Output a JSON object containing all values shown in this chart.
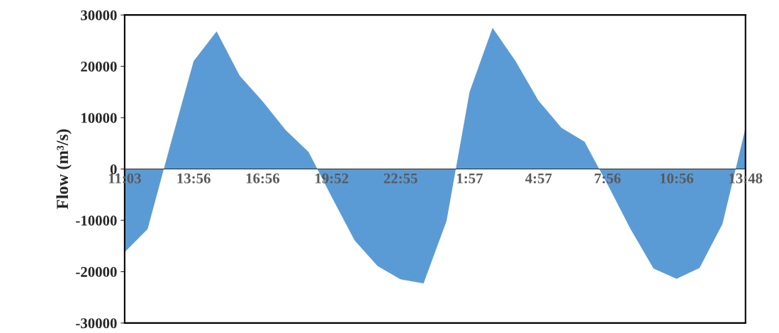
{
  "chart_data": {
    "type": "area",
    "ylabel": "Flow (m³/s)",
    "categories": [
      "11:03",
      null,
      null,
      "13:56",
      null,
      null,
      "16:56",
      null,
      null,
      "19:52",
      null,
      null,
      "22:55",
      null,
      null,
      "1:57",
      null,
      null,
      "4:57",
      null,
      null,
      "7:56",
      null,
      null,
      "10:56",
      null,
      null,
      "13:48"
    ],
    "values": [
      -16200,
      -11700,
      4900,
      21000,
      26800,
      18200,
      13200,
      7600,
      3300,
      -5400,
      -13900,
      -18900,
      -21500,
      -22300,
      -10100,
      15000,
      27500,
      21000,
      13300,
      8000,
      5300,
      -3000,
      -11700,
      -19400,
      -21400,
      -19300,
      -10700,
      8000
    ],
    "color": "#5b9bd5",
    "ylim": [
      -30000,
      30000
    ],
    "yticks": [
      -30000,
      -20000,
      -10000,
      0,
      10000,
      20000,
      30000
    ],
    "grid": false,
    "legend": false
  }
}
